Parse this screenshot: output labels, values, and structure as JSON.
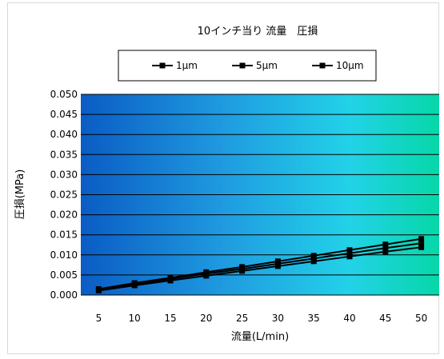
{
  "chart_data": {
    "type": "line",
    "title": "10インチ当り 流量　圧損",
    "xlabel": "流量(L/min)",
    "ylabel": "圧損(MPa)",
    "categories": [
      "5",
      "10",
      "15",
      "20",
      "25",
      "30",
      "35",
      "40",
      "45",
      "50"
    ],
    "y_ticks": [
      "0.000",
      "0.005",
      "0.010",
      "0.015",
      "0.020",
      "0.025",
      "0.030",
      "0.035",
      "0.040",
      "0.045",
      "0.050"
    ],
    "ylim": [
      0,
      0.05
    ],
    "grid": true,
    "legend_position": "top",
    "series": [
      {
        "name": "1μm",
        "values": [
          0.0015,
          0.003,
          0.0043,
          0.0057,
          0.007,
          0.0084,
          0.0098,
          0.0112,
          0.0126,
          0.014
        ]
      },
      {
        "name": "5μm",
        "values": [
          0.0013,
          0.0027,
          0.004,
          0.0053,
          0.0065,
          0.0078,
          0.0091,
          0.0104,
          0.0117,
          0.0129
        ]
      },
      {
        "name": "10μm",
        "values": [
          0.0011,
          0.0024,
          0.0036,
          0.0048,
          0.006,
          0.0072,
          0.0084,
          0.0096,
          0.0108,
          0.0119
        ]
      }
    ],
    "colors": {
      "line": "#000000",
      "plot_gradient": [
        "#0a5cc4",
        "#1f9be0",
        "#22d2e8",
        "#06d7a8"
      ],
      "grid": "#000000"
    }
  }
}
